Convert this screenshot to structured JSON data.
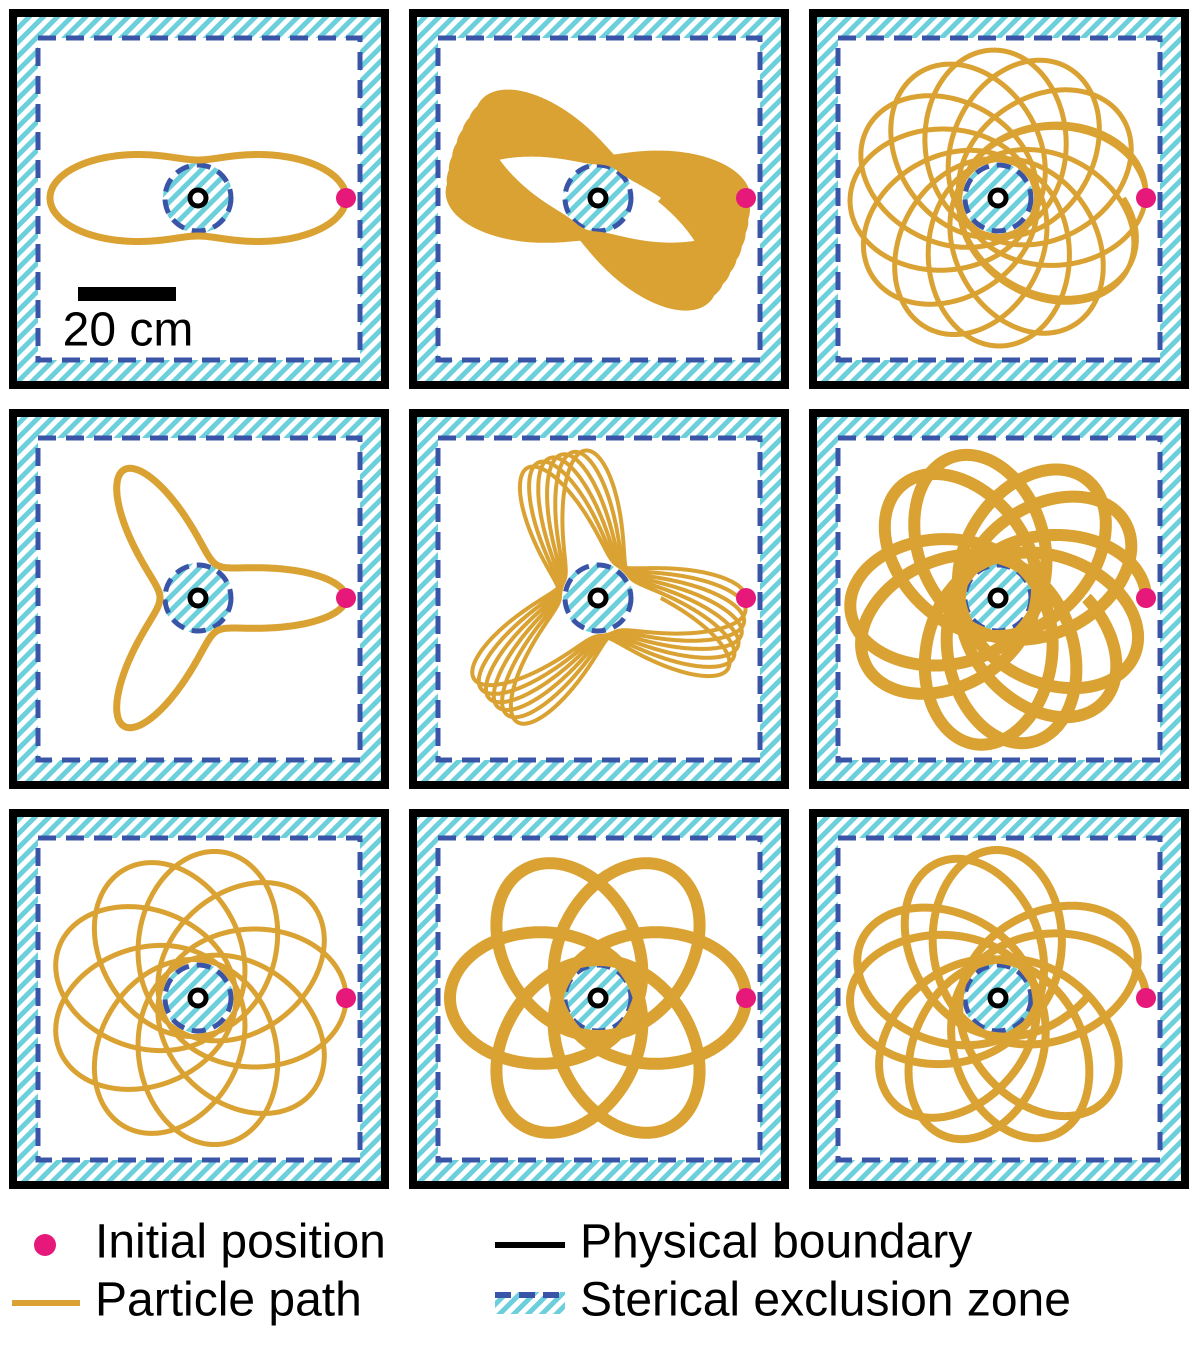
{
  "scale_bar": {
    "label": "20 cm"
  },
  "legend": {
    "items": [
      {
        "label": "Initial position"
      },
      {
        "label": "Physical boundary"
      },
      {
        "label": "Particle path"
      },
      {
        "label": "Sterical exclusion zone"
      }
    ]
  }
}
